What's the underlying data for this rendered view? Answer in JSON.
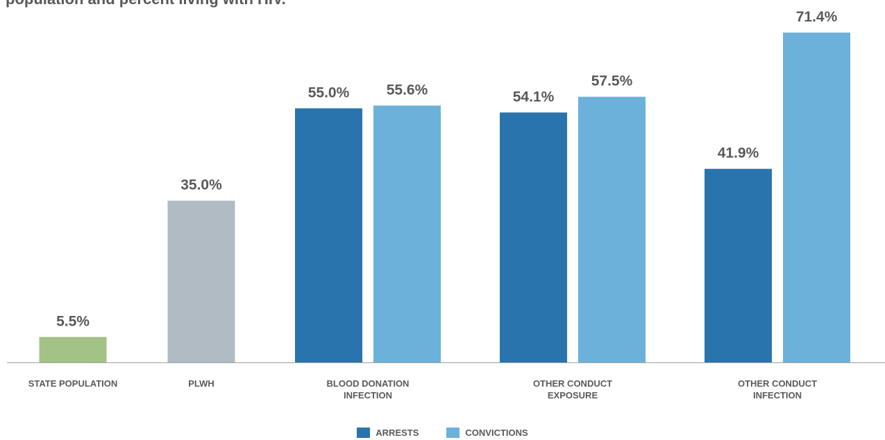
{
  "title": "population and percent living with HIV.",
  "colors": {
    "state_population": "#a3c285",
    "plwh": "#b1bbc3",
    "arrests": "#2a74ad",
    "convictions": "#6cb1da",
    "text": "#58595b",
    "axis": "#9a9fa3"
  },
  "chart_data": {
    "type": "bar",
    "title": "population and percent living with HIV.",
    "ylim": [
      0,
      75
    ],
    "grid": false,
    "legend_position": "bottom-center",
    "categories": [
      [
        "STATE POPULATION"
      ],
      [
        "PLWH"
      ],
      [
        "BLOOD DONATION",
        "INFECTION"
      ],
      [
        "OTHER CONDUCT",
        "EXPOSURE"
      ],
      [
        "OTHER CONDUCT",
        "INFECTION"
      ]
    ],
    "bars": [
      {
        "category": 0,
        "series": "state_population",
        "value": 5.5,
        "label": "5.5%"
      },
      {
        "category": 1,
        "series": "plwh",
        "value": 35.0,
        "label": "35.0%"
      },
      {
        "category": 2,
        "series": "arrests",
        "value": 55.0,
        "label": "55.0%"
      },
      {
        "category": 2,
        "series": "convictions",
        "value": 55.6,
        "label": "55.6%"
      },
      {
        "category": 3,
        "series": "arrests",
        "value": 54.1,
        "label": "54.1%"
      },
      {
        "category": 3,
        "series": "convictions",
        "value": 57.5,
        "label": "57.5%"
      },
      {
        "category": 4,
        "series": "arrests",
        "value": 41.9,
        "label": "41.9%"
      },
      {
        "category": 4,
        "series": "convictions",
        "value": 71.4,
        "label": "71.4%"
      }
    ],
    "legend": [
      {
        "key": "arrests",
        "label": "ARRESTS"
      },
      {
        "key": "convictions",
        "label": "CONVICTIONS"
      }
    ]
  }
}
